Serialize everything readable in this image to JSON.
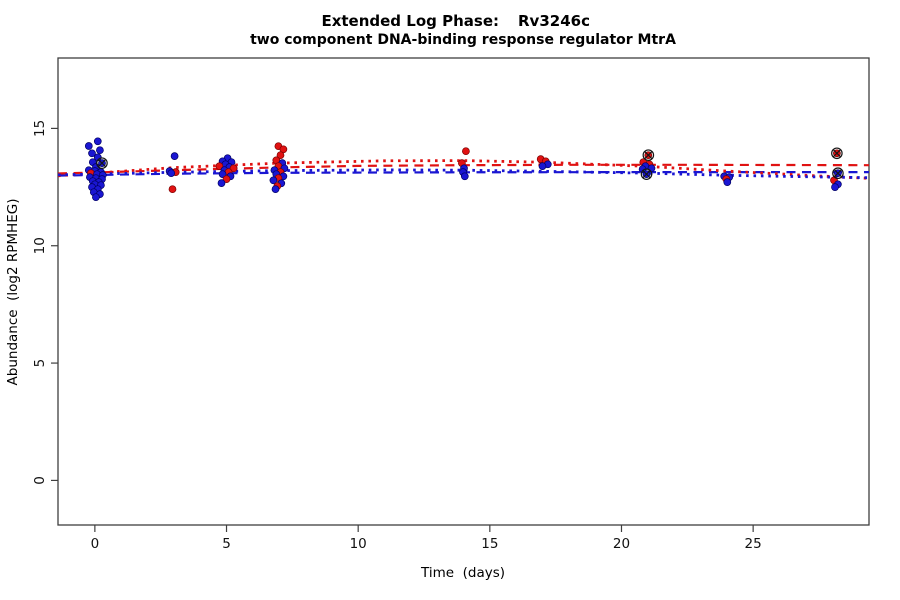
{
  "title": {
    "prefix": "Extended Log Phase:",
    "gene": "Rv3246c",
    "subtitle": "two component DNA-binding response regulator MtrA"
  },
  "axes": {
    "x_label": "Time  (days)",
    "y_label": "Abundance  (log2 RPMHEG)"
  },
  "colors": {
    "red": "#e01212",
    "blue": "#1a16d2",
    "red_edge": "#7a0000",
    "blue_edge": "#000060",
    "mark": "#151515",
    "axis": "#3f3f3f"
  },
  "chart_data": {
    "type": "scatter",
    "title": "Extended Log Phase: Rv3246c",
    "subtitle": "two component DNA-binding response regulator MtrA",
    "xlabel": "Time (days)",
    "ylabel": "Abundance (log2 RPMHEG)",
    "xlim": [
      -1.4,
      29.4
    ],
    "ylim": [
      -1.9,
      18.0
    ],
    "x_ticks": [
      0,
      5,
      10,
      15,
      20,
      25
    ],
    "y_ticks": [
      0,
      5,
      10,
      15
    ],
    "grid": false,
    "legend": "none",
    "point_note": "points are [day, log2_abundance, series(r|b), circled_x_mark(0|1)]",
    "points": [
      [
        0.11,
        14.45,
        "b",
        0
      ],
      [
        -0.23,
        14.25,
        "b",
        0
      ],
      [
        0.19,
        14.07,
        "b",
        0
      ],
      [
        -0.11,
        13.94,
        "b",
        0
      ],
      [
        0.11,
        13.77,
        "b",
        0
      ],
      [
        -0.08,
        13.56,
        "b",
        0
      ],
      [
        0.27,
        13.52,
        "b",
        1
      ],
      [
        0.04,
        13.35,
        "b",
        0
      ],
      [
        -0.23,
        13.22,
        "b",
        0
      ],
      [
        0.0,
        13.18,
        "b",
        0
      ],
      [
        0.23,
        13.14,
        "b",
        0
      ],
      [
        -0.15,
        13.09,
        "r",
        0
      ],
      [
        0.08,
        13.05,
        "b",
        0
      ],
      [
        0.3,
        13.01,
        "b",
        0
      ],
      [
        -0.19,
        12.92,
        "b",
        0
      ],
      [
        0.04,
        12.88,
        "b",
        0
      ],
      [
        0.27,
        12.84,
        "b",
        0
      ],
      [
        -0.08,
        12.75,
        "b",
        0
      ],
      [
        0.15,
        12.71,
        "b",
        0
      ],
      [
        0.0,
        12.62,
        "b",
        0
      ],
      [
        0.23,
        12.58,
        "b",
        0
      ],
      [
        -0.11,
        12.5,
        "b",
        0
      ],
      [
        0.11,
        12.41,
        "b",
        0
      ],
      [
        -0.04,
        12.28,
        "b",
        0
      ],
      [
        0.19,
        12.2,
        "b",
        0
      ],
      [
        0.04,
        12.07,
        "b",
        0
      ],
      [
        3.03,
        13.82,
        "b",
        0
      ],
      [
        2.84,
        13.18,
        "b",
        0
      ],
      [
        3.07,
        13.14,
        "r",
        0
      ],
      [
        2.9,
        13.09,
        "b",
        0
      ],
      [
        2.95,
        12.41,
        "r",
        0
      ],
      [
        5.04,
        13.73,
        "b",
        0
      ],
      [
        4.85,
        13.6,
        "b",
        0
      ],
      [
        5.19,
        13.56,
        "b",
        0
      ],
      [
        4.96,
        13.47,
        "b",
        0
      ],
      [
        4.73,
        13.39,
        "r",
        0
      ],
      [
        5.11,
        13.35,
        "b",
        0
      ],
      [
        5.27,
        13.3,
        "r",
        0
      ],
      [
        4.92,
        13.22,
        "b",
        0
      ],
      [
        5.08,
        13.14,
        "r",
        0
      ],
      [
        4.85,
        13.05,
        "b",
        0
      ],
      [
        5.15,
        12.96,
        "b",
        0
      ],
      [
        5.0,
        12.84,
        "r",
        0
      ],
      [
        4.81,
        12.67,
        "b",
        0
      ],
      [
        6.97,
        14.24,
        "r",
        0
      ],
      [
        7.16,
        14.11,
        "r",
        0
      ],
      [
        7.05,
        13.86,
        "r",
        0
      ],
      [
        6.89,
        13.64,
        "r",
        0
      ],
      [
        7.12,
        13.52,
        "b",
        0
      ],
      [
        6.97,
        13.39,
        "r",
        0
      ],
      [
        7.2,
        13.3,
        "b",
        0
      ],
      [
        6.82,
        13.22,
        "b",
        0
      ],
      [
        7.05,
        13.14,
        "r",
        0
      ],
      [
        6.89,
        13.05,
        "b",
        0
      ],
      [
        7.16,
        12.96,
        "b",
        0
      ],
      [
        6.97,
        12.88,
        "r",
        0
      ],
      [
        6.78,
        12.79,
        "b",
        0
      ],
      [
        7.08,
        12.66,
        "b",
        0
      ],
      [
        6.93,
        12.54,
        "r",
        0
      ],
      [
        6.86,
        12.41,
        "b",
        0
      ],
      [
        14.09,
        14.03,
        "r",
        0
      ],
      [
        13.94,
        13.52,
        "r",
        0
      ],
      [
        14.02,
        13.3,
        "b",
        0
      ],
      [
        13.98,
        13.14,
        "b",
        0
      ],
      [
        14.05,
        12.96,
        "b",
        0
      ],
      [
        16.93,
        13.69,
        "r",
        0
      ],
      [
        17.12,
        13.6,
        "r",
        0
      ],
      [
        17.2,
        13.47,
        "b",
        0
      ],
      [
        17.0,
        13.39,
        "b",
        0
      ],
      [
        21.02,
        13.86,
        "r",
        1
      ],
      [
        20.83,
        13.56,
        "r",
        0
      ],
      [
        21.06,
        13.47,
        "r",
        0
      ],
      [
        20.91,
        13.39,
        "b",
        0
      ],
      [
        21.14,
        13.3,
        "b",
        0
      ],
      [
        20.8,
        13.26,
        "b",
        0
      ],
      [
        20.95,
        13.05,
        "b",
        1
      ],
      [
        23.9,
        12.96,
        "b",
        0
      ],
      [
        24.09,
        12.92,
        "b",
        0
      ],
      [
        23.98,
        12.84,
        "r",
        0
      ],
      [
        24.02,
        12.71,
        "b",
        0
      ],
      [
        28.18,
        13.94,
        "r",
        1
      ],
      [
        28.22,
        13.09,
        "b",
        1
      ],
      [
        28.07,
        12.79,
        "r",
        0
      ],
      [
        28.22,
        12.62,
        "b",
        0
      ],
      [
        28.11,
        12.5,
        "b",
        0
      ]
    ],
    "trend_lines": [
      {
        "name": "red-dashed-fit",
        "series": "r",
        "style": "dashed",
        "path": [
          [
            -1.4,
            13.08
          ],
          [
            3,
            13.22
          ],
          [
            7,
            13.34
          ],
          [
            10,
            13.4
          ],
          [
            14,
            13.43
          ],
          [
            18,
            13.45
          ],
          [
            22,
            13.45
          ],
          [
            26,
            13.44
          ],
          [
            29.4,
            13.43
          ]
        ]
      },
      {
        "name": "blue-dashed-fit",
        "series": "b",
        "style": "dashed",
        "path": [
          [
            -1.4,
            12.99
          ],
          [
            3,
            13.07
          ],
          [
            7,
            13.11
          ],
          [
            14,
            13.13
          ],
          [
            21,
            13.14
          ],
          [
            29.4,
            13.14
          ]
        ]
      },
      {
        "name": "red-dotted-fit",
        "series": "r",
        "style": "dotted",
        "path": [
          [
            -1.4,
            12.98
          ],
          [
            3,
            13.33
          ],
          [
            7,
            13.52
          ],
          [
            11,
            13.62
          ],
          [
            14,
            13.63
          ],
          [
            17,
            13.56
          ],
          [
            21,
            13.38
          ],
          [
            24,
            13.18
          ],
          [
            27,
            13.0
          ],
          [
            29.4,
            12.87
          ]
        ]
      },
      {
        "name": "blue-dotted-fit",
        "series": "b",
        "style": "dotted",
        "path": [
          [
            -1.4,
            13.02
          ],
          [
            3,
            13.13
          ],
          [
            7,
            13.2
          ],
          [
            11,
            13.23
          ],
          [
            14,
            13.22
          ],
          [
            17,
            13.17
          ],
          [
            21,
            13.09
          ],
          [
            24,
            13.0
          ],
          [
            27,
            12.94
          ],
          [
            29.4,
            12.9
          ]
        ]
      }
    ]
  }
}
